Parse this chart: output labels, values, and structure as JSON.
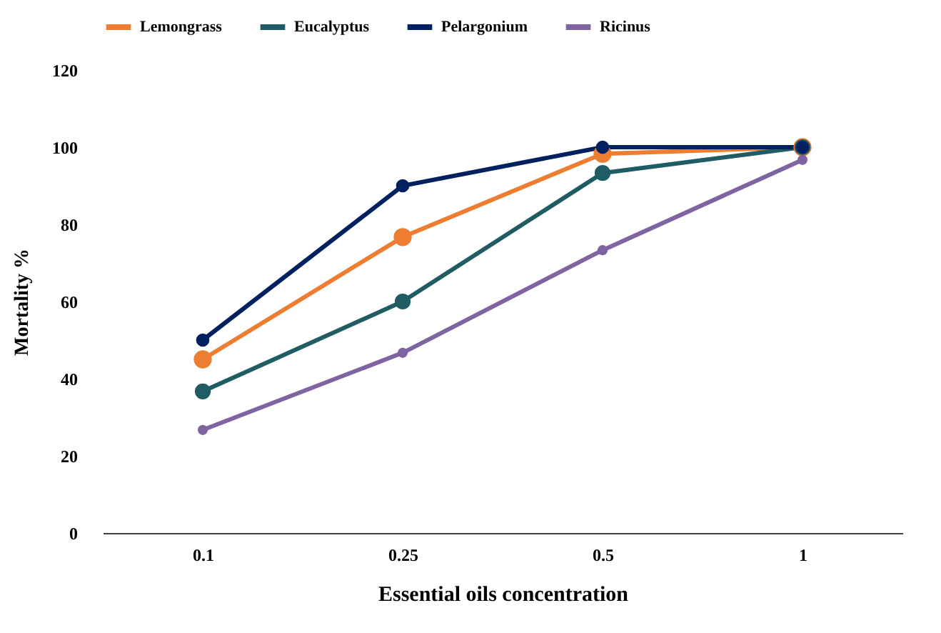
{
  "chart_data": {
    "type": "line",
    "xlabel": "Essential oils concentration",
    "ylabel": "Mortality %",
    "categories": [
      "0.1",
      "0.25",
      "0.5",
      "1"
    ],
    "series": [
      {
        "name": "Lemongrass",
        "color": "#ed7d31",
        "values": [
          45,
          76.7,
          98.3,
          100
        ]
      },
      {
        "name": "Eucalyptus",
        "color": "#1f5c63",
        "values": [
          36.7,
          60,
          93.3,
          100
        ]
      },
      {
        "name": "Pelargonium",
        "color": "#002060",
        "values": [
          50,
          90,
          100,
          100
        ]
      },
      {
        "name": "Ricinus",
        "color": "#8064a2",
        "values": [
          26.7,
          46.7,
          73.3,
          96.7
        ]
      }
    ],
    "ylim": [
      0,
      120
    ],
    "yticks": [
      0,
      20,
      40,
      60,
      80,
      100,
      120
    ],
    "grid": false,
    "legend": "top",
    "marker": "circle",
    "line_style": "solid"
  }
}
